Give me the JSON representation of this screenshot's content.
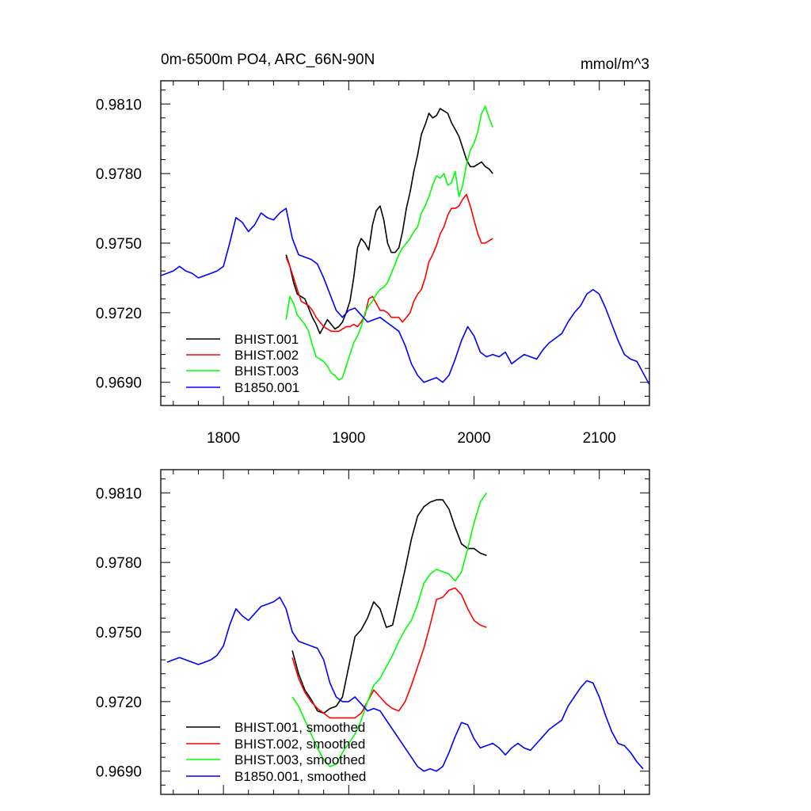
{
  "chart_data": [
    {
      "type": "line",
      "title": "0m-6500m PO4, ARC_66N-90N",
      "units": "mmol/m^3",
      "xlim": [
        1750,
        2140
      ],
      "ylim": [
        0.968,
        0.982
      ],
      "x_ticks": [
        "1800",
        "1900",
        "2000",
        "2100"
      ],
      "y_ticks": [
        "0.9690",
        "0.9720",
        "0.9750",
        "0.9780",
        "0.9810"
      ],
      "legend_position": "bottom-left",
      "series": [
        {
          "name": "BHIST.001",
          "color": "#000000",
          "x": [
            1850,
            1853,
            1856,
            1859,
            1862,
            1865,
            1868,
            1871,
            1874,
            1877,
            1880,
            1883,
            1886,
            1889,
            1892,
            1895,
            1898,
            1901,
            1904,
            1907,
            1910,
            1913,
            1916,
            1919,
            1922,
            1925,
            1928,
            1931,
            1934,
            1937,
            1940,
            1943,
            1946,
            1949,
            1952,
            1955,
            1958,
            1961,
            1964,
            1967,
            1970,
            1973,
            1976,
            1979,
            1982,
            1985,
            1988,
            1991,
            1994,
            1997,
            2000,
            2003,
            2006,
            2009,
            2012,
            2015
          ],
          "values": [
            0.9745,
            0.974,
            0.9733,
            0.9728,
            0.9727,
            0.9726,
            0.9722,
            0.9718,
            0.9715,
            0.9711,
            0.9714,
            0.9717,
            0.9715,
            0.9713,
            0.9714,
            0.9716,
            0.972,
            0.9725,
            0.9735,
            0.9748,
            0.9752,
            0.975,
            0.9747,
            0.9758,
            0.9764,
            0.9766,
            0.976,
            0.975,
            0.9746,
            0.9746,
            0.9748,
            0.9755,
            0.9765,
            0.9772,
            0.9781,
            0.9788,
            0.9797,
            0.9801,
            0.9806,
            0.9804,
            0.9805,
            0.9808,
            0.9807,
            0.9806,
            0.9802,
            0.9799,
            0.9796,
            0.9791,
            0.9786,
            0.9783,
            0.9783,
            0.9784,
            0.9785,
            0.9783,
            0.9782,
            0.978
          ]
        },
        {
          "name": "BHIST.002",
          "color": "#ff0000",
          "x": [
            1850,
            1853,
            1856,
            1859,
            1862,
            1865,
            1868,
            1871,
            1874,
            1877,
            1880,
            1883,
            1886,
            1889,
            1892,
            1895,
            1898,
            1901,
            1904,
            1907,
            1910,
            1913,
            1916,
            1919,
            1922,
            1925,
            1928,
            1931,
            1934,
            1937,
            1940,
            1943,
            1946,
            1949,
            1952,
            1955,
            1958,
            1961,
            1964,
            1967,
            1970,
            1973,
            1976,
            1979,
            1982,
            1985,
            1988,
            1991,
            1994,
            1997,
            2000,
            2003,
            2006,
            2009,
            2012,
            2015
          ],
          "values": [
            0.9744,
            0.974,
            0.9735,
            0.973,
            0.9725,
            0.9724,
            0.9723,
            0.9721,
            0.9718,
            0.9716,
            0.9714,
            0.9713,
            0.9712,
            0.9712,
            0.9712,
            0.9713,
            0.9714,
            0.9714,
            0.9715,
            0.9714,
            0.9716,
            0.9719,
            0.9726,
            0.9727,
            0.9724,
            0.9721,
            0.9721,
            0.972,
            0.9718,
            0.9718,
            0.9718,
            0.9716,
            0.9718,
            0.972,
            0.9725,
            0.9728,
            0.973,
            0.9735,
            0.9742,
            0.9745,
            0.9749,
            0.9754,
            0.9757,
            0.9762,
            0.9765,
            0.9765,
            0.9766,
            0.9769,
            0.9771,
            0.9766,
            0.976,
            0.9754,
            0.975,
            0.975,
            0.9751,
            0.9752
          ]
        },
        {
          "name": "BHIST.003",
          "color": "#00ff00",
          "x": [
            1850,
            1853,
            1856,
            1859,
            1862,
            1865,
            1868,
            1871,
            1874,
            1877,
            1880,
            1883,
            1886,
            1889,
            1892,
            1895,
            1898,
            1901,
            1904,
            1907,
            1910,
            1913,
            1916,
            1919,
            1922,
            1925,
            1928,
            1931,
            1934,
            1937,
            1940,
            1943,
            1946,
            1949,
            1952,
            1955,
            1958,
            1961,
            1964,
            1967,
            1970,
            1973,
            1976,
            1979,
            1982,
            1985,
            1988,
            1991,
            1994,
            1997,
            2000,
            2003,
            2006,
            2009,
            2012,
            2015
          ],
          "values": [
            0.9717,
            0.9727,
            0.9724,
            0.9719,
            0.9717,
            0.9715,
            0.9712,
            0.9706,
            0.9701,
            0.97,
            0.9699,
            0.9697,
            0.9694,
            0.9693,
            0.9691,
            0.9692,
            0.9697,
            0.9702,
            0.9707,
            0.971,
            0.9714,
            0.972,
            0.9723,
            0.9725,
            0.9728,
            0.973,
            0.9731,
            0.9733,
            0.9737,
            0.9741,
            0.9745,
            0.9748,
            0.975,
            0.9752,
            0.9755,
            0.9757,
            0.9763,
            0.9766,
            0.977,
            0.9775,
            0.9779,
            0.9778,
            0.978,
            0.9775,
            0.9776,
            0.9781,
            0.977,
            0.9775,
            0.9784,
            0.979,
            0.9793,
            0.9798,
            0.9806,
            0.9809,
            0.9804,
            0.98
          ]
        },
        {
          "name": "B1850.001",
          "color": "#0000ff",
          "x": [
            1750,
            1755,
            1760,
            1765,
            1770,
            1775,
            1780,
            1785,
            1790,
            1795,
            1800,
            1805,
            1810,
            1815,
            1820,
            1825,
            1830,
            1835,
            1840,
            1845,
            1850,
            1855,
            1860,
            1865,
            1870,
            1875,
            1880,
            1885,
            1890,
            1895,
            1900,
            1905,
            1910,
            1915,
            1920,
            1925,
            1930,
            1935,
            1940,
            1945,
            1950,
            1955,
            1960,
            1965,
            1970,
            1975,
            1980,
            1985,
            1990,
            1995,
            2000,
            2005,
            2010,
            2015,
            2020,
            2025,
            2030,
            2035,
            2040,
            2045,
            2050,
            2055,
            2060,
            2065,
            2070,
            2075,
            2080,
            2085,
            2090,
            2095,
            2100,
            2105,
            2110,
            2115,
            2120,
            2125,
            2130,
            2135,
            2140
          ],
          "values": [
            0.9736,
            0.9737,
            0.9738,
            0.974,
            0.9738,
            0.9737,
            0.9735,
            0.9736,
            0.9737,
            0.9738,
            0.974,
            0.975,
            0.9761,
            0.9759,
            0.9755,
            0.9758,
            0.9763,
            0.9761,
            0.976,
            0.9763,
            0.9765,
            0.9752,
            0.9745,
            0.9744,
            0.9743,
            0.9741,
            0.9735,
            0.9728,
            0.9721,
            0.9718,
            0.9721,
            0.9722,
            0.9719,
            0.9716,
            0.9717,
            0.9718,
            0.9716,
            0.9714,
            0.9712,
            0.9706,
            0.9698,
            0.9693,
            0.969,
            0.9691,
            0.9692,
            0.969,
            0.9693,
            0.97,
            0.9708,
            0.9714,
            0.971,
            0.9703,
            0.9701,
            0.9702,
            0.9701,
            0.9703,
            0.9698,
            0.97,
            0.9702,
            0.9701,
            0.97,
            0.9704,
            0.9707,
            0.9709,
            0.9711,
            0.9716,
            0.972,
            0.9723,
            0.9728,
            0.973,
            0.9728,
            0.9722,
            0.9715,
            0.9708,
            0.9702,
            0.97,
            0.9699,
            0.9694,
            0.9689
          ]
        }
      ]
    },
    {
      "type": "line",
      "title": "",
      "xlim": [
        1750,
        2140
      ],
      "ylim": [
        0.968,
        0.982
      ],
      "y_ticks": [
        "0.9690",
        "0.9720",
        "0.9750",
        "0.9780",
        "0.9810"
      ],
      "legend_position": "bottom-left",
      "series": [
        {
          "name": "BHIST.001, smoothed",
          "color": "#000000",
          "x": [
            1855,
            1860,
            1865,
            1870,
            1875,
            1880,
            1885,
            1890,
            1895,
            1900,
            1905,
            1910,
            1915,
            1920,
            1925,
            1930,
            1935,
            1940,
            1945,
            1950,
            1955,
            1960,
            1965,
            1970,
            1975,
            1980,
            1985,
            1990,
            1995,
            2000,
            2005,
            2010
          ],
          "values": [
            0.9742,
            0.9732,
            0.9725,
            0.9721,
            0.9716,
            0.9715,
            0.9717,
            0.9718,
            0.9722,
            0.9735,
            0.9748,
            0.9751,
            0.9756,
            0.9763,
            0.976,
            0.9752,
            0.9753,
            0.9765,
            0.9777,
            0.979,
            0.98,
            0.9804,
            0.9806,
            0.9807,
            0.9807,
            0.9803,
            0.9795,
            0.9788,
            0.9786,
            0.9786,
            0.9784,
            0.9783
          ]
        },
        {
          "name": "BHIST.002, smoothed",
          "color": "#ff0000",
          "x": [
            1855,
            1860,
            1865,
            1870,
            1875,
            1880,
            1885,
            1890,
            1895,
            1900,
            1905,
            1910,
            1915,
            1920,
            1925,
            1930,
            1935,
            1940,
            1945,
            1950,
            1955,
            1960,
            1965,
            1970,
            1975,
            1980,
            1985,
            1990,
            1995,
            2000,
            2005,
            2010
          ],
          "values": [
            0.9739,
            0.973,
            0.9724,
            0.972,
            0.9717,
            0.9715,
            0.9713,
            0.9713,
            0.9713,
            0.9713,
            0.9713,
            0.9715,
            0.972,
            0.9725,
            0.9722,
            0.9719,
            0.9717,
            0.9716,
            0.972,
            0.9727,
            0.9735,
            0.9743,
            0.9753,
            0.9764,
            0.9765,
            0.9768,
            0.9769,
            0.9766,
            0.976,
            0.9755,
            0.9753,
            0.9752
          ]
        },
        {
          "name": "BHIST.003, smoothed",
          "color": "#00ff00",
          "x": [
            1855,
            1860,
            1865,
            1870,
            1875,
            1880,
            1885,
            1890,
            1895,
            1900,
            1905,
            1910,
            1915,
            1920,
            1925,
            1930,
            1935,
            1940,
            1945,
            1950,
            1955,
            1960,
            1965,
            1970,
            1975,
            1980,
            1985,
            1990,
            1995,
            2000,
            2005,
            2010
          ],
          "values": [
            0.9722,
            0.9718,
            0.9712,
            0.9706,
            0.97,
            0.9695,
            0.9692,
            0.9693,
            0.9698,
            0.9702,
            0.9706,
            0.9712,
            0.972,
            0.9727,
            0.973,
            0.9735,
            0.974,
            0.9746,
            0.9751,
            0.9755,
            0.9762,
            0.9771,
            0.9775,
            0.9777,
            0.9776,
            0.9775,
            0.9772,
            0.9776,
            0.9786,
            0.9797,
            0.9806,
            0.981
          ]
        },
        {
          "name": "B1850.001, smoothed",
          "color": "#0000ff",
          "x": [
            1755,
            1760,
            1765,
            1770,
            1775,
            1780,
            1785,
            1790,
            1795,
            1800,
            1805,
            1810,
            1815,
            1820,
            1825,
            1830,
            1835,
            1840,
            1845,
            1850,
            1855,
            1860,
            1865,
            1870,
            1875,
            1880,
            1885,
            1890,
            1895,
            1900,
            1905,
            1910,
            1915,
            1920,
            1925,
            1930,
            1935,
            1940,
            1945,
            1950,
            1955,
            1960,
            1965,
            1970,
            1975,
            1980,
            1985,
            1990,
            1995,
            2000,
            2005,
            2010,
            2015,
            2020,
            2025,
            2030,
            2035,
            2040,
            2045,
            2050,
            2055,
            2060,
            2065,
            2070,
            2075,
            2080,
            2085,
            2090,
            2095,
            2100,
            2105,
            2110,
            2115,
            2120,
            2125,
            2130,
            2135
          ],
          "values": [
            0.9737,
            0.9738,
            0.9739,
            0.9738,
            0.9737,
            0.9736,
            0.9737,
            0.9738,
            0.974,
            0.9744,
            0.9753,
            0.976,
            0.9757,
            0.9755,
            0.9758,
            0.9761,
            0.9762,
            0.9763,
            0.9765,
            0.976,
            0.975,
            0.9746,
            0.9745,
            0.9744,
            0.9743,
            0.9738,
            0.9728,
            0.9722,
            0.972,
            0.972,
            0.9722,
            0.9719,
            0.9716,
            0.9717,
            0.9716,
            0.9712,
            0.9708,
            0.9704,
            0.97,
            0.9696,
            0.9692,
            0.969,
            0.9691,
            0.969,
            0.9692,
            0.9698,
            0.9705,
            0.9711,
            0.971,
            0.9704,
            0.97,
            0.9701,
            0.9702,
            0.97,
            0.9697,
            0.97,
            0.9702,
            0.97,
            0.9699,
            0.9702,
            0.9705,
            0.9708,
            0.971,
            0.9712,
            0.9718,
            0.9722,
            0.9726,
            0.9729,
            0.9728,
            0.9722,
            0.9714,
            0.9707,
            0.9702,
            0.9701,
            0.9698,
            0.9694,
            0.9691
          ]
        }
      ]
    }
  ]
}
